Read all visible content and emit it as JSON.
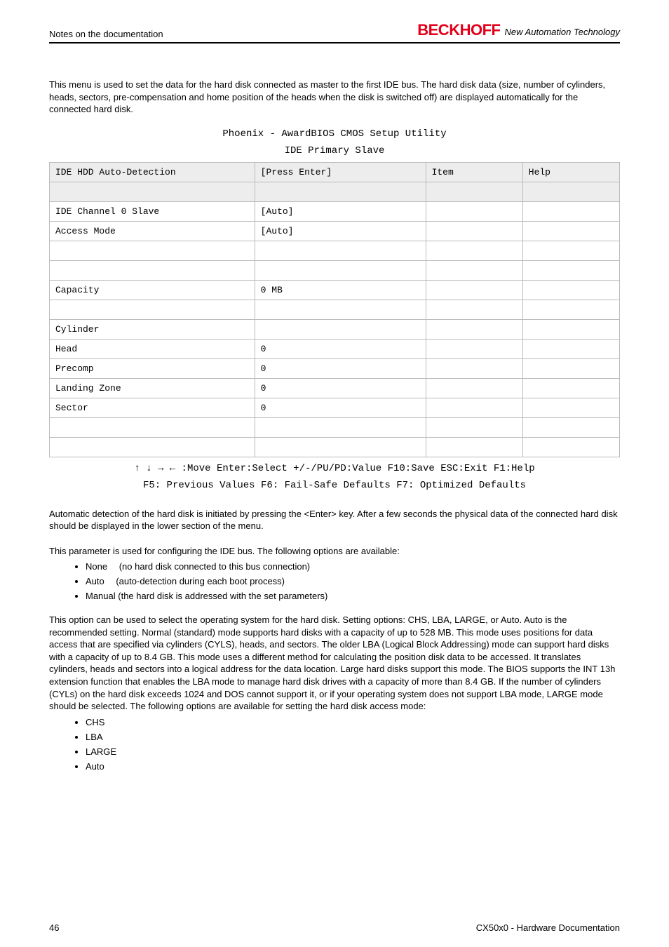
{
  "header": {
    "section_title": "Notes on the documentation",
    "brand": "BECKHOFF",
    "tagline": "New Automation Technology"
  },
  "intro_para": "This menu is used to set the data for the hard disk connected as master to the first IDE bus. The hard disk data (size, number of cylinders, heads, sectors, pre-compensation and home position of the heads when the disk is switched off) are displayed automatically for the connected hard disk.",
  "bios": {
    "title1": "Phoenix - AwardBIOS CMOS Setup Utility",
    "title2": "IDE Primary Slave",
    "header_row": [
      "IDE HDD Auto-Detection",
      "[Press Enter]",
      "Item",
      "Help"
    ],
    "rows": [
      [
        "",
        "",
        "",
        ""
      ],
      [
        "IDE Channel 0 Slave",
        "[Auto]",
        "",
        ""
      ],
      [
        "Access Mode",
        "[Auto]",
        "",
        ""
      ],
      [
        "",
        "",
        "",
        ""
      ],
      [
        "",
        "",
        "",
        ""
      ],
      [
        "Capacity",
        "0 MB",
        "",
        ""
      ],
      [
        "",
        "",
        "",
        ""
      ],
      [
        "Cylinder",
        "",
        "",
        ""
      ],
      [
        "Head",
        "0",
        "",
        ""
      ],
      [
        "Precomp",
        "0",
        "",
        ""
      ],
      [
        "Landing Zone",
        "0",
        "",
        ""
      ],
      [
        "Sector",
        "0",
        "",
        ""
      ],
      [
        "",
        "",
        "",
        ""
      ],
      [
        "",
        "",
        "",
        ""
      ]
    ],
    "nav1": "↑ ↓ → ← :Move Enter:Select +/-/PU/PD:Value F10:Save ESC:Exit F1:Help",
    "nav2": "F5: Previous Values F6: Fail-Safe Defaults F7: Optimized Defaults"
  },
  "auto_detect_para": "Automatic detection of the hard disk is initiated by pressing the <Enter> key. After a few seconds the physical data of the connected hard disk should be displayed in the lower section of the menu.",
  "ide_bus_para": "This parameter is used for configuring the IDE bus. The following options are available:",
  "ide_bus_options": [
    "None  (no hard disk connected to this bus connection)",
    "Auto  (auto-detection during each boot process)",
    "Manual (the hard disk is addressed with the set parameters)"
  ],
  "access_mode_para": "This option can be used to select the operating system for the hard disk. Setting options: CHS, LBA, LARGE, or Auto. Auto is the recommended setting. Normal (standard) mode supports hard disks with a capacity of up to 528 MB. This mode uses positions for data access that are specified via cylinders (CYLS), heads, and sectors. The older LBA (Logical Block Addressing) mode can support hard disks with a capacity of up to 8.4 GB. This mode uses a different method for calculating the position disk data to be accessed. It translates cylinders, heads and sectors into a logical address for the data location. Large hard disks support this mode. The BIOS supports the INT 13h extension function that enables the LBA mode to manage hard disk drives with a capacity of more than 8.4 GB. If the number of cylinders (CYLs) on the hard disk exceeds 1024 and DOS cannot support it, or if your operating system does not support LBA mode, LARGE mode should be selected. The following options are available for setting the hard disk access mode:",
  "access_mode_options": [
    "CHS",
    "LBA",
    "LARGE",
    "Auto"
  ],
  "footer": {
    "page": "46",
    "doc": "CX50x0 - Hardware Documentation"
  }
}
